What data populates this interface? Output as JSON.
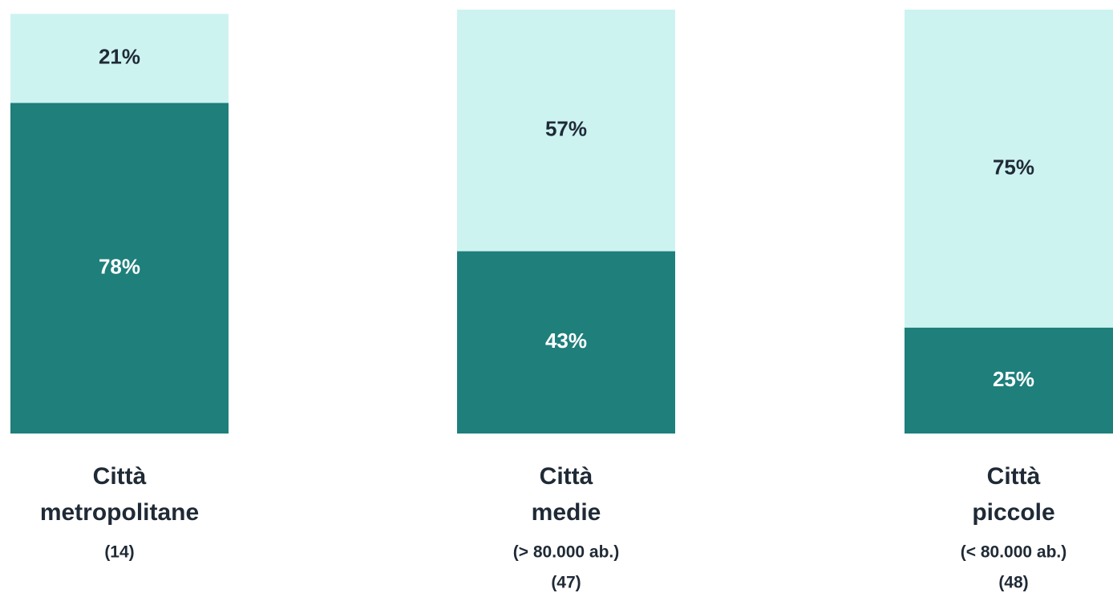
{
  "chart_data": {
    "type": "stacked_bar",
    "categories": [
      [
        "Città",
        "metropolitane"
      ],
      [
        "Città",
        "medie"
      ],
      [
        "Città",
        "piccole"
      ]
    ],
    "category_notes": [
      [
        "(14)"
      ],
      [
        "(> 80.000 ab.)",
        "(47)"
      ],
      [
        "(< 80.000 ab.)",
        "(48)"
      ]
    ],
    "series": [
      {
        "color": "#1e7f7b",
        "values": [
          78,
          43,
          25
        ],
        "value_labels": [
          "78%",
          "43%",
          "25%"
        ]
      },
      {
        "color": "#cdf3f1",
        "values": [
          21,
          57,
          75
        ],
        "value_labels": [
          "21%",
          "57%",
          "75%"
        ]
      }
    ],
    "ylim": [
      0,
      100
    ]
  }
}
